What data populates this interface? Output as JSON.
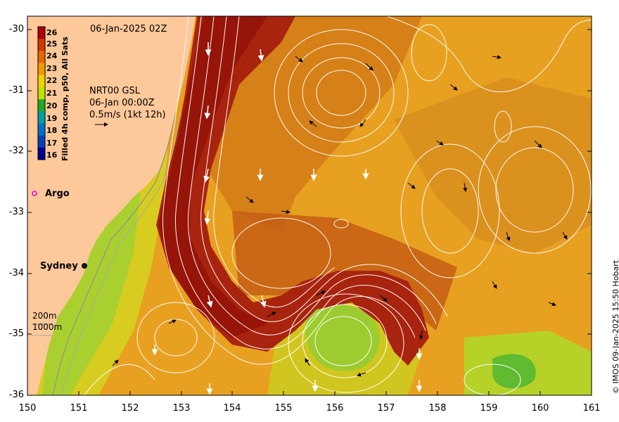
{
  "map": {
    "date_label": "06-Jan-2025 02Z",
    "product_lines": [
      "NRT00 GSL",
      "06-Jan 00:00Z",
      "0.5m/s (1kt 12h)"
    ],
    "colorbar_title": "Filled 4h comp, p50, All Sats",
    "colorbar_ticks": [
      "26",
      "25",
      "24",
      "23",
      "22",
      "21",
      "20",
      "19",
      "18",
      "17",
      "16"
    ],
    "colorbar_colors": [
      "#b00000",
      "#d03800",
      "#e26a00",
      "#f29a00",
      "#f2d000",
      "#c4e000",
      "#22aa22",
      "#00a0a0",
      "#0070c8",
      "#0040b8",
      "#000090"
    ],
    "argo_label": "Argo",
    "argo_color": "#e000e0",
    "city_label": "Sydney",
    "depth_labels": [
      "200m",
      "1000m"
    ],
    "copyright": "© IMOS 09-Jan-2025 15:50 Hobart",
    "x_ticks": [
      "150",
      "151",
      "152",
      "153",
      "154",
      "155",
      "156",
      "157",
      "158",
      "159",
      "160",
      "161"
    ],
    "y_ticks": [
      "-30",
      "-31",
      "-32",
      "-33",
      "-34",
      "-35",
      "-36"
    ],
    "land_color": "#fdc89a",
    "sst_colors": {
      "warm_core": "#9e1a0e",
      "warm": "#c05010",
      "mid": "#d87a10",
      "orange": "#eda020",
      "cool": "#d8d820",
      "green": "#88cc30"
    }
  }
}
